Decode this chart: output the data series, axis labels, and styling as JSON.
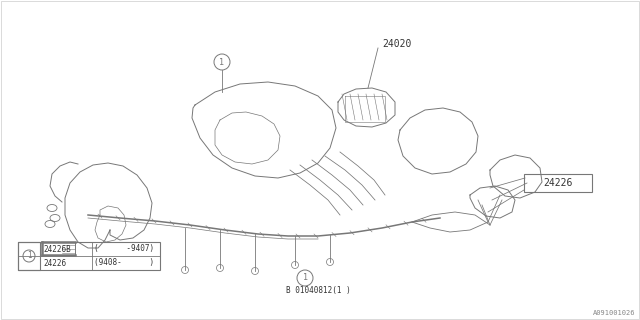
{
  "bg_color": "#ffffff",
  "line_color": "#777777",
  "dark_color": "#333333",
  "part_24020": "24020",
  "part_24226": "24226",
  "table_rows": [
    [
      "24226B",
      "(      -9407)"
    ],
    [
      "24226",
      "(9408-      )"
    ]
  ],
  "bottom_code": "B 01040812(1 )",
  "corner_code": "A091001026",
  "circle_label": "1"
}
